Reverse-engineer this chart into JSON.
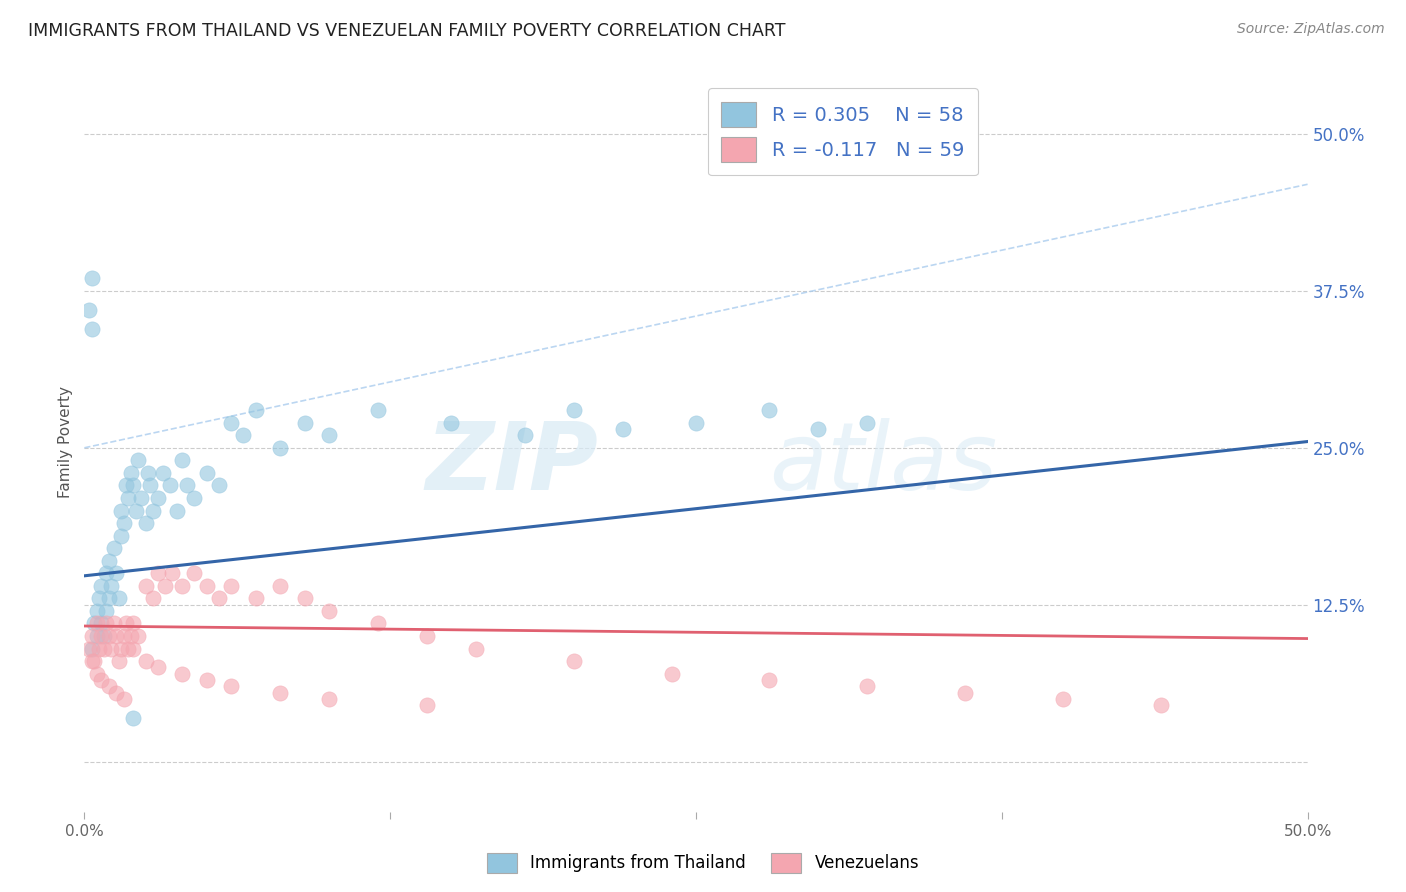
{
  "title": "IMMIGRANTS FROM THAILAND VS VENEZUELAN FAMILY POVERTY CORRELATION CHART",
  "source": "Source: ZipAtlas.com",
  "ylabel": "Family Poverty",
  "legend_label1": "Immigrants from Thailand",
  "legend_label2": "Venezuelans",
  "color_blue": "#92C5DE",
  "color_pink": "#F4A6B0",
  "color_blue_line": "#3465A8",
  "color_pink_line": "#E06070",
  "color_accent": "#4472C4",
  "xlim": [
    0.0,
    0.5
  ],
  "ylim": [
    -0.04,
    0.55
  ],
  "ytick_vals": [
    0.0,
    0.125,
    0.25,
    0.375,
    0.5
  ],
  "xtick_vals": [
    0.0,
    0.125,
    0.25,
    0.375,
    0.5
  ],
  "thailand_x": [
    0.003,
    0.004,
    0.005,
    0.005,
    0.006,
    0.007,
    0.007,
    0.008,
    0.009,
    0.009,
    0.01,
    0.01,
    0.011,
    0.012,
    0.013,
    0.014,
    0.015,
    0.015,
    0.016,
    0.017,
    0.018,
    0.019,
    0.02,
    0.021,
    0.022,
    0.023,
    0.025,
    0.026,
    0.027,
    0.028,
    0.03,
    0.032,
    0.035,
    0.038,
    0.04,
    0.042,
    0.045,
    0.05,
    0.055,
    0.06,
    0.065,
    0.07,
    0.08,
    0.09,
    0.1,
    0.12,
    0.15,
    0.18,
    0.2,
    0.22,
    0.25,
    0.28,
    0.3,
    0.32,
    0.002,
    0.003,
    0.003,
    0.02
  ],
  "thailand_y": [
    0.09,
    0.11,
    0.1,
    0.12,
    0.13,
    0.11,
    0.14,
    0.1,
    0.12,
    0.15,
    0.13,
    0.16,
    0.14,
    0.17,
    0.15,
    0.13,
    0.18,
    0.2,
    0.19,
    0.22,
    0.21,
    0.23,
    0.22,
    0.2,
    0.24,
    0.21,
    0.19,
    0.23,
    0.22,
    0.2,
    0.21,
    0.23,
    0.22,
    0.2,
    0.24,
    0.22,
    0.21,
    0.23,
    0.22,
    0.27,
    0.26,
    0.28,
    0.25,
    0.27,
    0.26,
    0.28,
    0.27,
    0.26,
    0.28,
    0.265,
    0.27,
    0.28,
    0.265,
    0.27,
    0.36,
    0.385,
    0.345,
    0.035
  ],
  "venezuela_x": [
    0.002,
    0.003,
    0.004,
    0.005,
    0.006,
    0.007,
    0.008,
    0.009,
    0.01,
    0.011,
    0.012,
    0.013,
    0.014,
    0.015,
    0.016,
    0.017,
    0.018,
    0.019,
    0.02,
    0.022,
    0.025,
    0.028,
    0.03,
    0.033,
    0.036,
    0.04,
    0.045,
    0.05,
    0.055,
    0.06,
    0.07,
    0.08,
    0.09,
    0.1,
    0.12,
    0.14,
    0.16,
    0.2,
    0.24,
    0.28,
    0.32,
    0.36,
    0.4,
    0.44,
    0.003,
    0.005,
    0.007,
    0.01,
    0.013,
    0.016,
    0.02,
    0.025,
    0.03,
    0.04,
    0.05,
    0.06,
    0.08,
    0.1,
    0.14
  ],
  "venezuela_y": [
    0.09,
    0.1,
    0.08,
    0.11,
    0.09,
    0.1,
    0.09,
    0.11,
    0.1,
    0.09,
    0.11,
    0.1,
    0.08,
    0.09,
    0.1,
    0.11,
    0.09,
    0.1,
    0.11,
    0.1,
    0.14,
    0.13,
    0.15,
    0.14,
    0.15,
    0.14,
    0.15,
    0.14,
    0.13,
    0.14,
    0.13,
    0.14,
    0.13,
    0.12,
    0.11,
    0.1,
    0.09,
    0.08,
    0.07,
    0.065,
    0.06,
    0.055,
    0.05,
    0.045,
    0.08,
    0.07,
    0.065,
    0.06,
    0.055,
    0.05,
    0.09,
    0.08,
    0.075,
    0.07,
    0.065,
    0.06,
    0.055,
    0.05,
    0.045
  ]
}
